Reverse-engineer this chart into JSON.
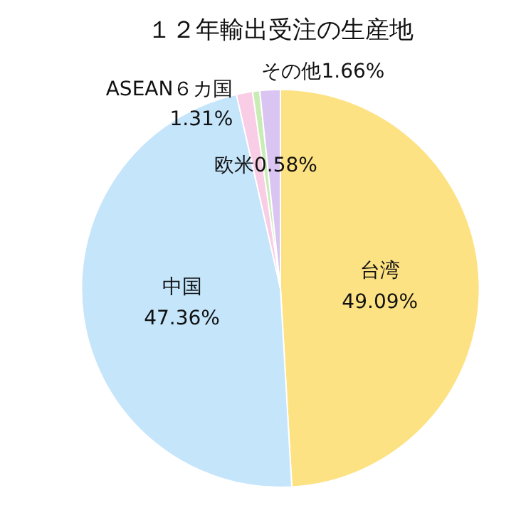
{
  "chart_data": {
    "type": "pie",
    "title": "１２年輸出受注の生産地",
    "categories": [
      "台湾",
      "中国",
      "ASEAN６カ国",
      "欧米",
      "その他"
    ],
    "values": [
      49.09,
      47.36,
      1.31,
      0.58,
      1.66
    ],
    "value_labels": [
      "49.09%",
      "47.36%",
      "1.31%",
      "0.58%",
      "1.66%"
    ],
    "colors": [
      "#fde283",
      "#c5e5fb",
      "#f9cde5",
      "#c8ecb4",
      "#d9c4f2"
    ],
    "legend": false
  }
}
